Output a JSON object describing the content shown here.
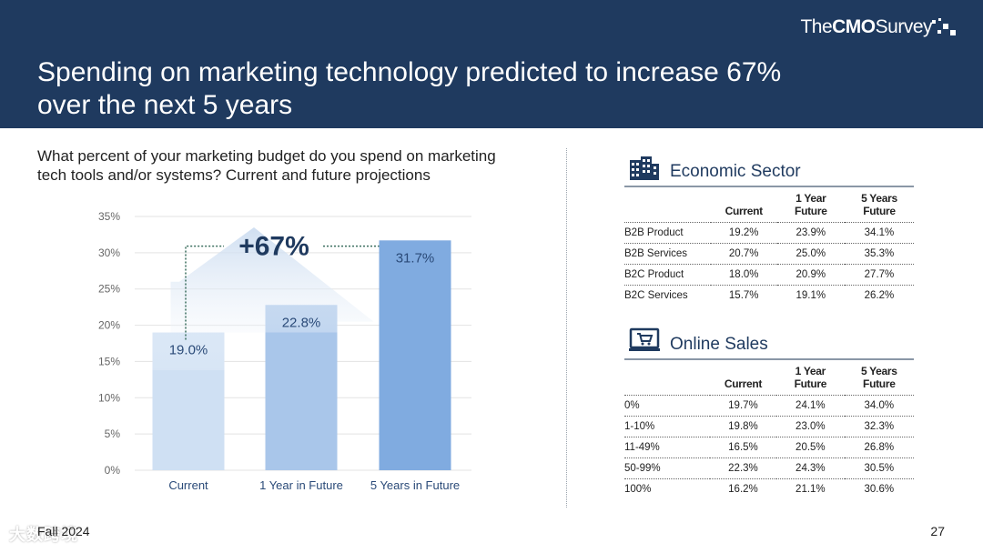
{
  "brand": {
    "the": "The",
    "cmo": "CMO",
    "survey": "Survey"
  },
  "title": {
    "line1": "Spending on marketing technology predicted to increase 67%",
    "line2": "over the next 5 years"
  },
  "question": {
    "line1": "What percent of your marketing budget do you spend on marketing",
    "line2": "tech tools and/or systems? Current and future projections"
  },
  "chart_data": {
    "type": "bar",
    "categories": [
      "Current",
      "1 Year in Future",
      "5 Years in Future"
    ],
    "values": [
      19.0,
      22.8,
      31.7
    ],
    "value_labels": [
      "19.0%",
      "22.8%",
      "31.7%"
    ],
    "yticks": [
      "0%",
      "5%",
      "10%",
      "15%",
      "20%",
      "25%",
      "30%",
      "35%"
    ],
    "ylim": [
      0,
      35
    ],
    "grid": true,
    "annotation": "+67%",
    "colors": [
      "#cfe0f3",
      "#a9c6ea",
      "#80abe0"
    ],
    "arrow_color": "#c7d9ef"
  },
  "economic_sector": {
    "title": "Economic Sector",
    "icon": "buildings-icon",
    "headers": [
      "",
      "Current",
      "1 Year\nFuture",
      "5 Years\nFuture"
    ],
    "rows": [
      [
        "B2B Product",
        "19.2%",
        "23.9%",
        "34.1%"
      ],
      [
        "B2B Services",
        "20.7%",
        "25.0%",
        "35.3%"
      ],
      [
        "B2C Product",
        "18.0%",
        "20.9%",
        "27.7%"
      ],
      [
        "B2C Services",
        "15.7%",
        "19.1%",
        "26.2%"
      ]
    ]
  },
  "online_sales": {
    "title": "Online Sales",
    "icon": "cart-monitor-icon",
    "headers": [
      "",
      "Current",
      "1 Year\nFuture",
      "5 Years\nFuture"
    ],
    "rows": [
      [
        "0%",
        "19.7%",
        "24.1%",
        "34.0%"
      ],
      [
        "1-10%",
        "19.8%",
        "23.0%",
        "32.3%"
      ],
      [
        "11-49%",
        "16.5%",
        "20.5%",
        "26.8%"
      ],
      [
        "50-99%",
        "22.3%",
        "24.3%",
        "30.5%"
      ],
      [
        "100%",
        "16.2%",
        "21.1%",
        "30.6%"
      ]
    ]
  },
  "footer": {
    "left": "Fall 2024",
    "page": "27"
  },
  "watermark": "大数跨境",
  "colors": {
    "header_bg": "#1f3a5f",
    "accent": "#1f3a5f"
  }
}
